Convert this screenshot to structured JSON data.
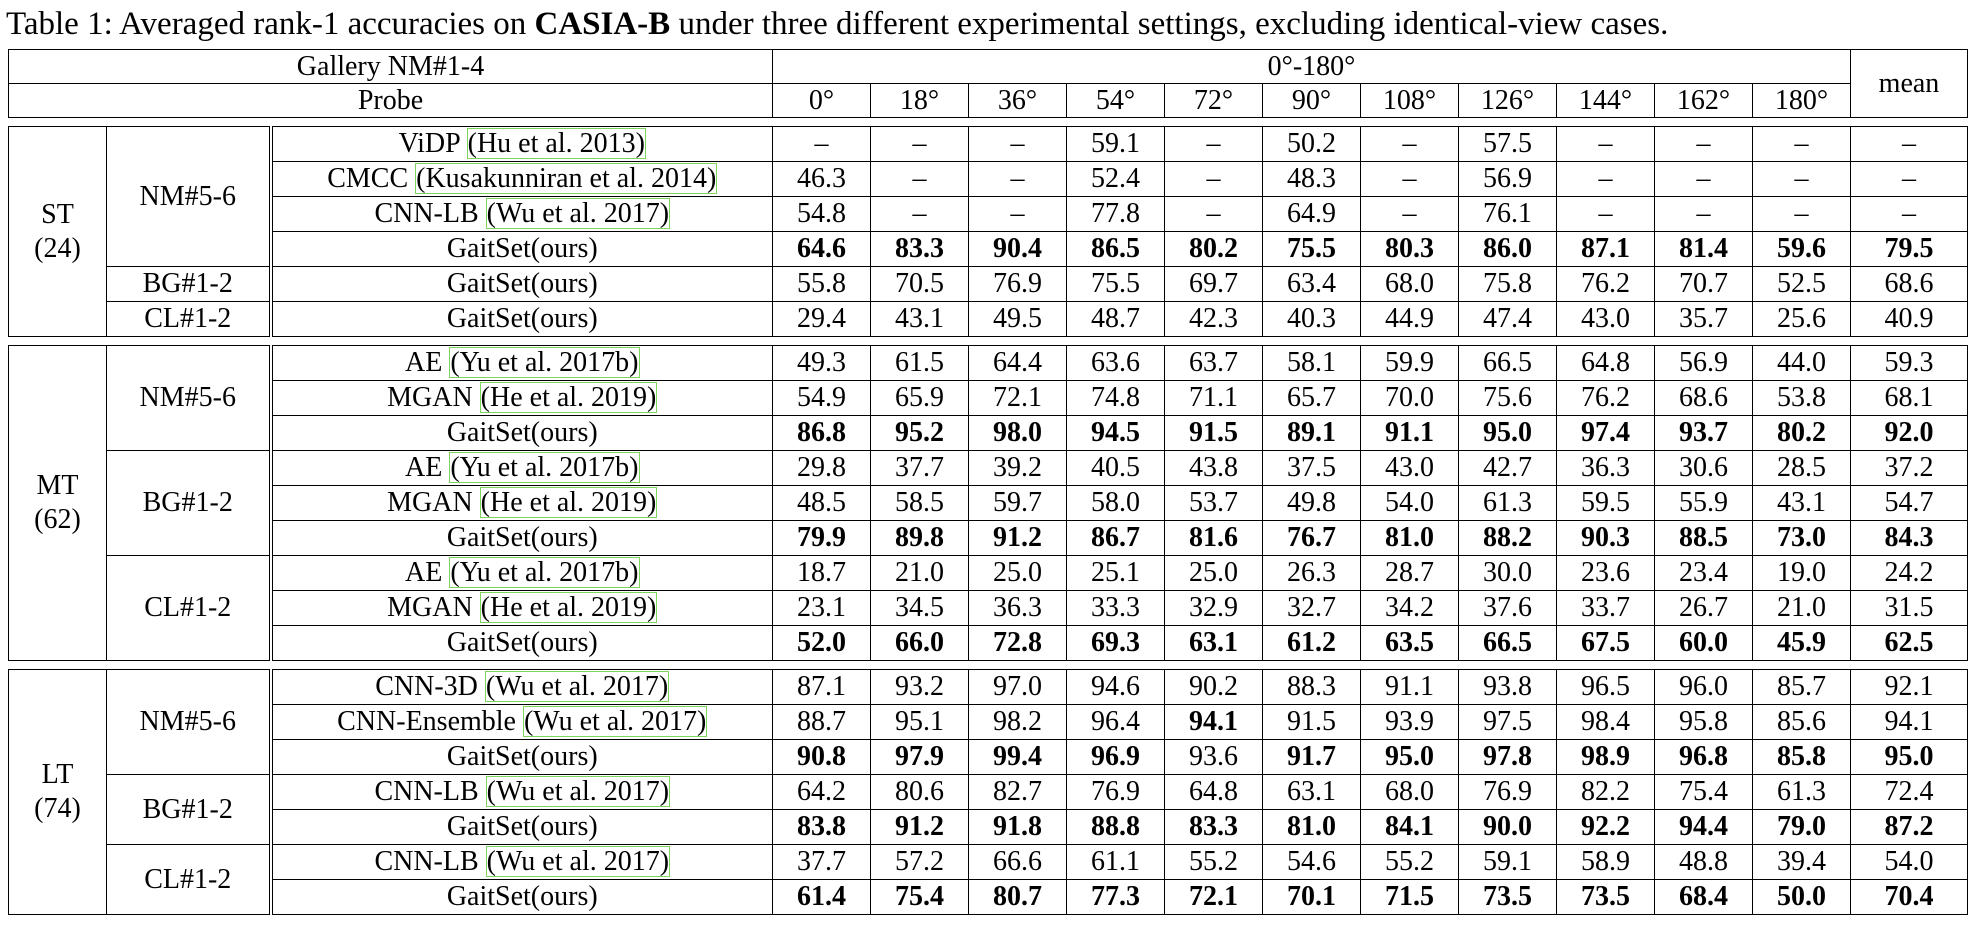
{
  "caption": {
    "prefix": "Table 1: Averaged rank-1 accuracies on ",
    "dataset": "CASIA-B",
    "suffix": " under three different experimental settings, excluding identical-view cases."
  },
  "header": {
    "gallery": "Gallery NM#1-4",
    "range": "0°-180°",
    "probe": "Probe",
    "mean": "mean",
    "angles": [
      "0°",
      "18°",
      "36°",
      "54°",
      "72°",
      "90°",
      "108°",
      "126°",
      "144°",
      "162°",
      "180°"
    ]
  },
  "sections": [
    {
      "setting": "ST",
      "count": "(24)",
      "groups": [
        {
          "probe": "NM#5-6",
          "rows": [
            {
              "method": "ViDP ",
              "cite": "(Hu et al. 2013)",
              "values": [
                "–",
                "–",
                "–",
                "59.1",
                "–",
                "50.2",
                "–",
                "57.5",
                "–",
                "–",
                "–",
                "–"
              ],
              "bold": false
            },
            {
              "method": "CMCC ",
              "cite": "(Kusakunniran et al. 2014)",
              "values": [
                "46.3",
                "–",
                "–",
                "52.4",
                "–",
                "48.3",
                "–",
                "56.9",
                "–",
                "–",
                "–",
                "–"
              ],
              "bold": false
            },
            {
              "method": "CNN-LB ",
              "cite": "(Wu et al. 2017)",
              "values": [
                "54.8",
                "–",
                "–",
                "77.8",
                "–",
                "64.9",
                "–",
                "76.1",
                "–",
                "–",
                "–",
                "–"
              ],
              "bold": false
            },
            {
              "method": "GaitSet(ours)",
              "cite": "",
              "values": [
                "64.6",
                "83.3",
                "90.4",
                "86.5",
                "80.2",
                "75.5",
                "80.3",
                "86.0",
                "87.1",
                "81.4",
                "59.6",
                "79.5"
              ],
              "bold": true
            }
          ]
        },
        {
          "probe": "BG#1-2",
          "rows": [
            {
              "method": "GaitSet(ours)",
              "cite": "",
              "values": [
                "55.8",
                "70.5",
                "76.9",
                "75.5",
                "69.7",
                "63.4",
                "68.0",
                "75.8",
                "76.2",
                "70.7",
                "52.5",
                "68.6"
              ],
              "bold": false
            }
          ]
        },
        {
          "probe": "CL#1-2",
          "rows": [
            {
              "method": "GaitSet(ours)",
              "cite": "",
              "values": [
                "29.4",
                "43.1",
                "49.5",
                "48.7",
                "42.3",
                "40.3",
                "44.9",
                "47.4",
                "43.0",
                "35.7",
                "25.6",
                "40.9"
              ],
              "bold": false
            }
          ]
        }
      ]
    },
    {
      "setting": "MT",
      "count": "(62)",
      "groups": [
        {
          "probe": "NM#5-6",
          "rows": [
            {
              "method": "AE ",
              "cite": "(Yu et al. 2017b)",
              "values": [
                "49.3",
                "61.5",
                "64.4",
                "63.6",
                "63.7",
                "58.1",
                "59.9",
                "66.5",
                "64.8",
                "56.9",
                "44.0",
                "59.3"
              ],
              "bold": false
            },
            {
              "method": "MGAN ",
              "cite": "(He et al. 2019)",
              "values": [
                "54.9",
                "65.9",
                "72.1",
                "74.8",
                "71.1",
                "65.7",
                "70.0",
                "75.6",
                "76.2",
                "68.6",
                "53.8",
                "68.1"
              ],
              "bold": false
            },
            {
              "method": "GaitSet(ours)",
              "cite": "",
              "values": [
                "86.8",
                "95.2",
                "98.0",
                "94.5",
                "91.5",
                "89.1",
                "91.1",
                "95.0",
                "97.4",
                "93.7",
                "80.2",
                "92.0"
              ],
              "bold": true
            }
          ]
        },
        {
          "probe": "BG#1-2",
          "rows": [
            {
              "method": "AE ",
              "cite": "(Yu et al. 2017b)",
              "values": [
                "29.8",
                "37.7",
                "39.2",
                "40.5",
                "43.8",
                "37.5",
                "43.0",
                "42.7",
                "36.3",
                "30.6",
                "28.5",
                "37.2"
              ],
              "bold": false
            },
            {
              "method": "MGAN ",
              "cite": "(He et al. 2019)",
              "values": [
                "48.5",
                "58.5",
                "59.7",
                "58.0",
                "53.7",
                "49.8",
                "54.0",
                "61.3",
                "59.5",
                "55.9",
                "43.1",
                "54.7"
              ],
              "bold": false
            },
            {
              "method": "GaitSet(ours)",
              "cite": "",
              "values": [
                "79.9",
                "89.8",
                "91.2",
                "86.7",
                "81.6",
                "76.7",
                "81.0",
                "88.2",
                "90.3",
                "88.5",
                "73.0",
                "84.3"
              ],
              "bold": true
            }
          ]
        },
        {
          "probe": "CL#1-2",
          "rows": [
            {
              "method": "AE ",
              "cite": "(Yu et al. 2017b)",
              "values": [
                "18.7",
                "21.0",
                "25.0",
                "25.1",
                "25.0",
                "26.3",
                "28.7",
                "30.0",
                "23.6",
                "23.4",
                "19.0",
                "24.2"
              ],
              "bold": false
            },
            {
              "method": "MGAN ",
              "cite": "(He et al. 2019)",
              "values": [
                "23.1",
                "34.5",
                "36.3",
                "33.3",
                "32.9",
                "32.7",
                "34.2",
                "37.6",
                "33.7",
                "26.7",
                "21.0",
                "31.5"
              ],
              "bold": false
            },
            {
              "method": "GaitSet(ours)",
              "cite": "",
              "values": [
                "52.0",
                "66.0",
                "72.8",
                "69.3",
                "63.1",
                "61.2",
                "63.5",
                "66.5",
                "67.5",
                "60.0",
                "45.9",
                "62.5"
              ],
              "bold": true
            }
          ]
        }
      ]
    },
    {
      "setting": "LT",
      "count": "(74)",
      "groups": [
        {
          "probe": "NM#5-6",
          "rows": [
            {
              "method": "CNN-3D ",
              "cite": "(Wu et al. 2017)",
              "values": [
                "87.1",
                "93.2",
                "97.0",
                "94.6",
                "90.2",
                "88.3",
                "91.1",
                "93.8",
                "96.5",
                "96.0",
                "85.7",
                "92.1"
              ],
              "bold": false
            },
            {
              "method": "CNN-Ensemble ",
              "cite": "(Wu et al. 2017)",
              "values": [
                "88.7",
                "95.1",
                "98.2",
                "96.4",
                "94.1",
                "91.5",
                "93.9",
                "97.5",
                "98.4",
                "95.8",
                "85.6",
                "94.1"
              ],
              "bold": false,
              "boldIdx": [
                4
              ]
            },
            {
              "method": "GaitSet(ours)",
              "cite": "",
              "values": [
                "90.8",
                "97.9",
                "99.4",
                "96.9",
                "93.6",
                "91.7",
                "95.0",
                "97.8",
                "98.9",
                "96.8",
                "85.8",
                "95.0"
              ],
              "bold": true,
              "plainIdx": [
                4
              ]
            }
          ]
        },
        {
          "probe": "BG#1-2",
          "rows": [
            {
              "method": "CNN-LB ",
              "cite": "(Wu et al. 2017)",
              "values": [
                "64.2",
                "80.6",
                "82.7",
                "76.9",
                "64.8",
                "63.1",
                "68.0",
                "76.9",
                "82.2",
                "75.4",
                "61.3",
                "72.4"
              ],
              "bold": false
            },
            {
              "method": "GaitSet(ours)",
              "cite": "",
              "values": [
                "83.8",
                "91.2",
                "91.8",
                "88.8",
                "83.3",
                "81.0",
                "84.1",
                "90.0",
                "92.2",
                "94.4",
                "79.0",
                "87.2"
              ],
              "bold": true
            }
          ]
        },
        {
          "probe": "CL#1-2",
          "rows": [
            {
              "method": "CNN-LB ",
              "cite": "(Wu et al. 2017)",
              "values": [
                "37.7",
                "57.2",
                "66.6",
                "61.1",
                "55.2",
                "54.6",
                "55.2",
                "59.1",
                "58.9",
                "48.8",
                "39.4",
                "54.0"
              ],
              "bold": false
            },
            {
              "method": "GaitSet(ours)",
              "cite": "",
              "values": [
                "61.4",
                "75.4",
                "80.7",
                "77.3",
                "72.1",
                "70.1",
                "71.5",
                "73.5",
                "73.5",
                "68.4",
                "50.0",
                "70.4"
              ],
              "bold": true
            }
          ]
        }
      ]
    }
  ]
}
